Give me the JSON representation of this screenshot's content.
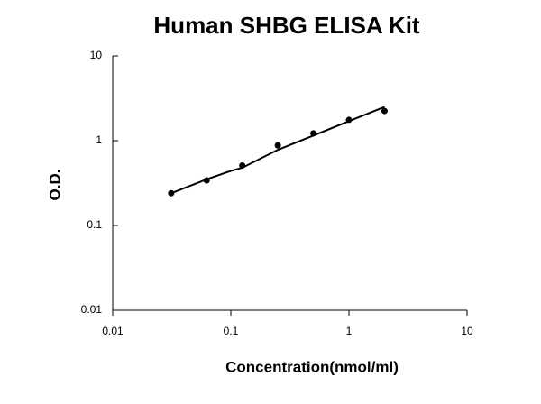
{
  "chart_data": {
    "type": "scatter",
    "title": "Human SHBG ELISA Kit",
    "x_label": "Concentration(nmol/ml)",
    "y_label": "O.D.",
    "x": [
      0.03125,
      0.0625,
      0.125,
      0.25,
      0.5,
      1,
      2
    ],
    "values": [
      0.24,
      0.34,
      0.51,
      0.88,
      1.22,
      1.76,
      2.24
    ],
    "color": "#000000",
    "fit": {
      "x": [
        0.03125,
        0.0625,
        0.1,
        0.125,
        0.25,
        0.5,
        1,
        2
      ],
      "values": [
        0.24,
        0.35,
        0.44,
        0.48,
        0.78,
        1.15,
        1.7,
        2.5
      ]
    },
    "log_x": true,
    "log_y": true,
    "xlim": [
      0.01,
      10
    ],
    "ylim": [
      0.01,
      10
    ],
    "xticks": [
      0.01,
      0.1,
      1,
      10
    ],
    "yticks": [
      0.01,
      0.1,
      1,
      10
    ]
  }
}
